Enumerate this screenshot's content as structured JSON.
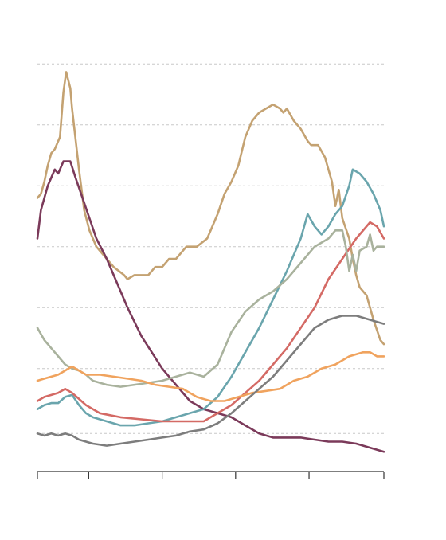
{
  "chart_data": {
    "type": "line",
    "title": "",
    "xlabel": "",
    "ylabel": "",
    "grid": true,
    "legend": "none",
    "xlim": [
      0,
      1
    ],
    "ylim": [
      0,
      1
    ],
    "gridlines_y": [
      0.07,
      0.23,
      0.38,
      0.53,
      0.68,
      0.83,
      0.98
    ],
    "x_ticks": [
      0.0,
      0.148,
      0.36,
      0.572,
      0.784,
      1.0
    ],
    "series": [
      {
        "color": "#c4a272",
        "points": [
          [
            0.0,
            0.65
          ],
          [
            0.01,
            0.66
          ],
          [
            0.02,
            0.69
          ],
          [
            0.03,
            0.73
          ],
          [
            0.04,
            0.76
          ],
          [
            0.05,
            0.77
          ],
          [
            0.065,
            0.8
          ],
          [
            0.075,
            0.91
          ],
          [
            0.083,
            0.96
          ],
          [
            0.095,
            0.92
          ],
          [
            0.1,
            0.87
          ],
          [
            0.12,
            0.72
          ],
          [
            0.135,
            0.62
          ],
          [
            0.15,
            0.57
          ],
          [
            0.17,
            0.53
          ],
          [
            0.2,
            0.5
          ],
          [
            0.22,
            0.48
          ],
          [
            0.25,
            0.46
          ],
          [
            0.26,
            0.45
          ],
          [
            0.28,
            0.46
          ],
          [
            0.3,
            0.46
          ],
          [
            0.32,
            0.46
          ],
          [
            0.34,
            0.48
          ],
          [
            0.36,
            0.48
          ],
          [
            0.38,
            0.5
          ],
          [
            0.4,
            0.5
          ],
          [
            0.43,
            0.53
          ],
          [
            0.46,
            0.53
          ],
          [
            0.49,
            0.55
          ],
          [
            0.5,
            0.57
          ],
          [
            0.52,
            0.61
          ],
          [
            0.54,
            0.66
          ],
          [
            0.56,
            0.69
          ],
          [
            0.58,
            0.73
          ],
          [
            0.6,
            0.8
          ],
          [
            0.62,
            0.84
          ],
          [
            0.64,
            0.86
          ],
          [
            0.66,
            0.87
          ],
          [
            0.68,
            0.88
          ],
          [
            0.7,
            0.87
          ],
          [
            0.71,
            0.86
          ],
          [
            0.72,
            0.87
          ],
          [
            0.74,
            0.84
          ],
          [
            0.76,
            0.82
          ],
          [
            0.78,
            0.79
          ],
          [
            0.79,
            0.78
          ],
          [
            0.81,
            0.78
          ],
          [
            0.83,
            0.75
          ],
          [
            0.85,
            0.69
          ],
          [
            0.86,
            0.63
          ],
          [
            0.87,
            0.67
          ],
          [
            0.88,
            0.6
          ],
          [
            0.9,
            0.55
          ],
          [
            0.91,
            0.5
          ],
          [
            0.92,
            0.46
          ],
          [
            0.93,
            0.43
          ],
          [
            0.95,
            0.41
          ],
          [
            0.97,
            0.35
          ],
          [
            0.99,
            0.3
          ],
          [
            1.0,
            0.29
          ]
        ]
      },
      {
        "color": "#7b3a5a",
        "points": [
          [
            0.0,
            0.55
          ],
          [
            0.01,
            0.62
          ],
          [
            0.03,
            0.68
          ],
          [
            0.05,
            0.72
          ],
          [
            0.06,
            0.71
          ],
          [
            0.075,
            0.74
          ],
          [
            0.095,
            0.74
          ],
          [
            0.11,
            0.7
          ],
          [
            0.13,
            0.65
          ],
          [
            0.15,
            0.6
          ],
          [
            0.17,
            0.55
          ],
          [
            0.2,
            0.5
          ],
          [
            0.23,
            0.44
          ],
          [
            0.26,
            0.38
          ],
          [
            0.3,
            0.31
          ],
          [
            0.33,
            0.27
          ],
          [
            0.36,
            0.23
          ],
          [
            0.4,
            0.19
          ],
          [
            0.44,
            0.15
          ],
          [
            0.48,
            0.13
          ],
          [
            0.52,
            0.12
          ],
          [
            0.56,
            0.11
          ],
          [
            0.6,
            0.09
          ],
          [
            0.64,
            0.07
          ],
          [
            0.68,
            0.06
          ],
          [
            0.72,
            0.06
          ],
          [
            0.76,
            0.06
          ],
          [
            0.8,
            0.055
          ],
          [
            0.84,
            0.05
          ],
          [
            0.88,
            0.05
          ],
          [
            0.92,
            0.045
          ],
          [
            0.96,
            0.035
          ],
          [
            1.0,
            0.025
          ]
        ]
      },
      {
        "color": "#6aa5ad",
        "points": [
          [
            0.0,
            0.13
          ],
          [
            0.02,
            0.14
          ],
          [
            0.04,
            0.145
          ],
          [
            0.06,
            0.145
          ],
          [
            0.08,
            0.16
          ],
          [
            0.1,
            0.165
          ],
          [
            0.12,
            0.14
          ],
          [
            0.14,
            0.12
          ],
          [
            0.16,
            0.11
          ],
          [
            0.2,
            0.1
          ],
          [
            0.24,
            0.09
          ],
          [
            0.28,
            0.09
          ],
          [
            0.32,
            0.095
          ],
          [
            0.36,
            0.1
          ],
          [
            0.4,
            0.11
          ],
          [
            0.44,
            0.12
          ],
          [
            0.48,
            0.13
          ],
          [
            0.52,
            0.16
          ],
          [
            0.56,
            0.21
          ],
          [
            0.6,
            0.27
          ],
          [
            0.64,
            0.33
          ],
          [
            0.68,
            0.4
          ],
          [
            0.72,
            0.47
          ],
          [
            0.76,
            0.55
          ],
          [
            0.78,
            0.61
          ],
          [
            0.8,
            0.58
          ],
          [
            0.82,
            0.56
          ],
          [
            0.84,
            0.58
          ],
          [
            0.86,
            0.61
          ],
          [
            0.88,
            0.63
          ],
          [
            0.9,
            0.68
          ],
          [
            0.91,
            0.72
          ],
          [
            0.93,
            0.71
          ],
          [
            0.95,
            0.69
          ],
          [
            0.97,
            0.66
          ],
          [
            0.99,
            0.62
          ],
          [
            1.0,
            0.58
          ]
        ]
      },
      {
        "color": "#d46a65",
        "points": [
          [
            0.0,
            0.15
          ],
          [
            0.02,
            0.16
          ],
          [
            0.04,
            0.165
          ],
          [
            0.06,
            0.17
          ],
          [
            0.08,
            0.18
          ],
          [
            0.1,
            0.17
          ],
          [
            0.12,
            0.155
          ],
          [
            0.14,
            0.14
          ],
          [
            0.18,
            0.12
          ],
          [
            0.24,
            0.11
          ],
          [
            0.3,
            0.105
          ],
          [
            0.36,
            0.1
          ],
          [
            0.42,
            0.1
          ],
          [
            0.48,
            0.1
          ],
          [
            0.52,
            0.12
          ],
          [
            0.56,
            0.14
          ],
          [
            0.6,
            0.17
          ],
          [
            0.64,
            0.2
          ],
          [
            0.68,
            0.24
          ],
          [
            0.72,
            0.28
          ],
          [
            0.76,
            0.33
          ],
          [
            0.8,
            0.38
          ],
          [
            0.84,
            0.45
          ],
          [
            0.88,
            0.5
          ],
          [
            0.92,
            0.55
          ],
          [
            0.96,
            0.59
          ],
          [
            0.98,
            0.58
          ],
          [
            1.0,
            0.55
          ]
        ]
      },
      {
        "color": "#a9b29d",
        "points": [
          [
            0.0,
            0.33
          ],
          [
            0.02,
            0.3
          ],
          [
            0.04,
            0.28
          ],
          [
            0.06,
            0.26
          ],
          [
            0.08,
            0.24
          ],
          [
            0.1,
            0.23
          ],
          [
            0.12,
            0.225
          ],
          [
            0.14,
            0.215
          ],
          [
            0.16,
            0.2
          ],
          [
            0.2,
            0.19
          ],
          [
            0.24,
            0.185
          ],
          [
            0.28,
            0.19
          ],
          [
            0.32,
            0.195
          ],
          [
            0.36,
            0.2
          ],
          [
            0.4,
            0.21
          ],
          [
            0.44,
            0.22
          ],
          [
            0.48,
            0.21
          ],
          [
            0.52,
            0.24
          ],
          [
            0.56,
            0.32
          ],
          [
            0.6,
            0.37
          ],
          [
            0.64,
            0.4
          ],
          [
            0.68,
            0.42
          ],
          [
            0.72,
            0.45
          ],
          [
            0.76,
            0.49
          ],
          [
            0.8,
            0.53
          ],
          [
            0.84,
            0.55
          ],
          [
            0.86,
            0.57
          ],
          [
            0.88,
            0.57
          ],
          [
            0.89,
            0.53
          ],
          [
            0.9,
            0.47
          ],
          [
            0.91,
            0.51
          ],
          [
            0.92,
            0.47
          ],
          [
            0.93,
            0.52
          ],
          [
            0.95,
            0.53
          ],
          [
            0.96,
            0.56
          ],
          [
            0.97,
            0.52
          ],
          [
            0.98,
            0.53
          ],
          [
            1.0,
            0.53
          ]
        ]
      },
      {
        "color": "#f0a35e",
        "points": [
          [
            0.0,
            0.2
          ],
          [
            0.02,
            0.205
          ],
          [
            0.04,
            0.21
          ],
          [
            0.06,
            0.215
          ],
          [
            0.08,
            0.225
          ],
          [
            0.1,
            0.235
          ],
          [
            0.12,
            0.225
          ],
          [
            0.14,
            0.215
          ],
          [
            0.18,
            0.215
          ],
          [
            0.22,
            0.21
          ],
          [
            0.26,
            0.205
          ],
          [
            0.3,
            0.2
          ],
          [
            0.34,
            0.19
          ],
          [
            0.38,
            0.185
          ],
          [
            0.42,
            0.18
          ],
          [
            0.46,
            0.16
          ],
          [
            0.5,
            0.15
          ],
          [
            0.54,
            0.15
          ],
          [
            0.58,
            0.16
          ],
          [
            0.62,
            0.17
          ],
          [
            0.66,
            0.175
          ],
          [
            0.7,
            0.18
          ],
          [
            0.74,
            0.2
          ],
          [
            0.78,
            0.21
          ],
          [
            0.82,
            0.23
          ],
          [
            0.86,
            0.24
          ],
          [
            0.9,
            0.26
          ],
          [
            0.94,
            0.27
          ],
          [
            0.96,
            0.27
          ],
          [
            0.98,
            0.26
          ],
          [
            1.0,
            0.26
          ]
        ]
      },
      {
        "color": "#7d7d7d",
        "points": [
          [
            0.0,
            0.07
          ],
          [
            0.02,
            0.065
          ],
          [
            0.04,
            0.07
          ],
          [
            0.06,
            0.065
          ],
          [
            0.08,
            0.07
          ],
          [
            0.1,
            0.065
          ],
          [
            0.12,
            0.055
          ],
          [
            0.16,
            0.045
          ],
          [
            0.2,
            0.04
          ],
          [
            0.24,
            0.045
          ],
          [
            0.28,
            0.05
          ],
          [
            0.32,
            0.055
          ],
          [
            0.36,
            0.06
          ],
          [
            0.4,
            0.065
          ],
          [
            0.44,
            0.075
          ],
          [
            0.48,
            0.08
          ],
          [
            0.52,
            0.095
          ],
          [
            0.56,
            0.12
          ],
          [
            0.6,
            0.15
          ],
          [
            0.64,
            0.18
          ],
          [
            0.68,
            0.21
          ],
          [
            0.72,
            0.25
          ],
          [
            0.76,
            0.29
          ],
          [
            0.8,
            0.33
          ],
          [
            0.84,
            0.35
          ],
          [
            0.88,
            0.36
          ],
          [
            0.92,
            0.36
          ],
          [
            0.96,
            0.35
          ],
          [
            0.98,
            0.345
          ],
          [
            1.0,
            0.34
          ]
        ]
      }
    ]
  }
}
